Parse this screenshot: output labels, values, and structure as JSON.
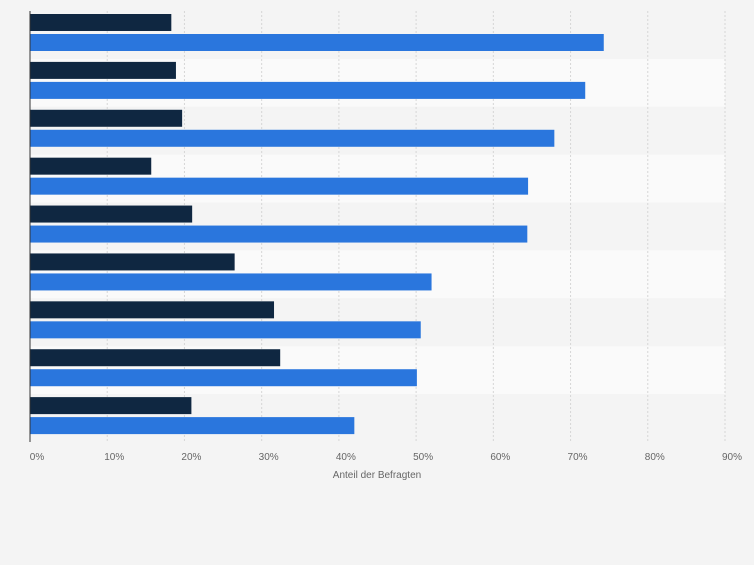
{
  "chart_data": {
    "type": "bar",
    "orientation": "horizontal",
    "title": "",
    "xlabel": "Anteil der Befragten",
    "ylabel": "",
    "xlim": [
      0,
      90
    ],
    "x_ticks": [
      "0%",
      "10%",
      "20%",
      "30%",
      "40%",
      "50%",
      "60%",
      "70%",
      "80%",
      "90%"
    ],
    "grid": true,
    "legend": "none",
    "categories": [
      "",
      "",
      "",
      "",
      "",
      "",
      "",
      "",
      ""
    ],
    "series": [
      {
        "color": "#0f2741",
        "values": [
          18.3,
          18.9,
          19.7,
          15.7,
          21.0,
          26.5,
          31.6,
          32.4,
          20.9
        ]
      },
      {
        "color": "#2a76dd",
        "values": [
          74.3,
          71.9,
          67.9,
          64.5,
          64.4,
          52.0,
          50.6,
          50.1,
          42.0
        ]
      }
    ]
  }
}
